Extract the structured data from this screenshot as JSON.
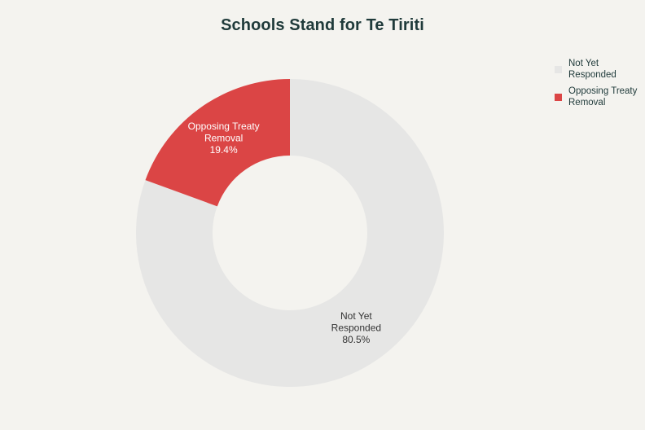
{
  "chart_data": {
    "type": "pie",
    "title": "Schools Stand for Te Tiriti",
    "categories": [
      "Not Yet Responded",
      "Opposing Treaty Removal"
    ],
    "values": [
      80.5,
      19.4
    ],
    "labels": [
      [
        "Not Yet",
        "Responded",
        "80.5%"
      ],
      [
        "Opposing Treaty",
        "Removal",
        "19.4%"
      ]
    ],
    "colors": [
      "#e6e6e5",
      "#db4545"
    ],
    "label_colors": [
      "#333333",
      "#ffffff"
    ],
    "donut": true,
    "legend": {
      "position": "top-right",
      "items": [
        {
          "label": "Not Yet Responded",
          "color": "#e6e6e5"
        },
        {
          "label": "Opposing Treaty Removal",
          "color": "#db4545"
        }
      ]
    }
  }
}
